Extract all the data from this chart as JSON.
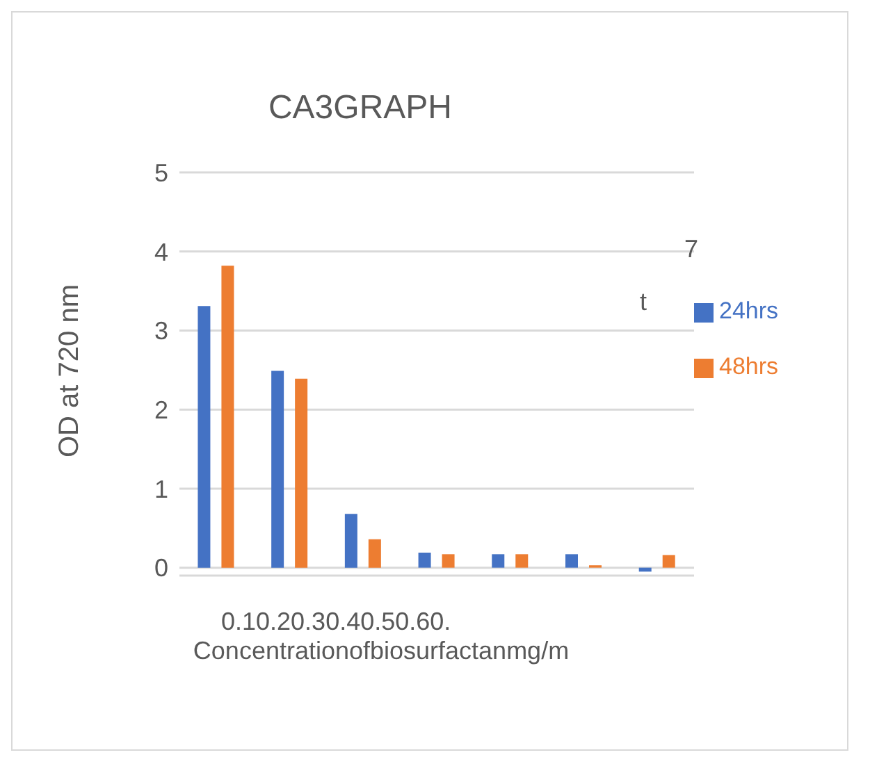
{
  "chart_data": {
    "type": "bar",
    "title": "CA3GRAPH",
    "xlabel": "Concentrationofbiosurfactanmg/m",
    "ylabel": "OD at 720 nm",
    "categories": [
      null,
      null,
      null,
      null,
      null,
      null,
      null
    ],
    "series": [
      {
        "name": "24hrs",
        "color": "#4472c4",
        "values": [
          3.31,
          2.49,
          0.68,
          0.19,
          0.17,
          0.17,
          -0.05
        ]
      },
      {
        "name": "48hrs",
        "color": "#ed7d31",
        "values": [
          3.82,
          2.39,
          0.36,
          0.17,
          0.17,
          0.03,
          0.16
        ]
      }
    ],
    "ylim": [
      -0.1,
      5
    ],
    "yticks": [
      0,
      1,
      2,
      3,
      4,
      5
    ],
    "grid": "y",
    "legend": "right",
    "annotations": [
      "0.10.20.30.40.50.60.",
      "7",
      "t"
    ]
  }
}
